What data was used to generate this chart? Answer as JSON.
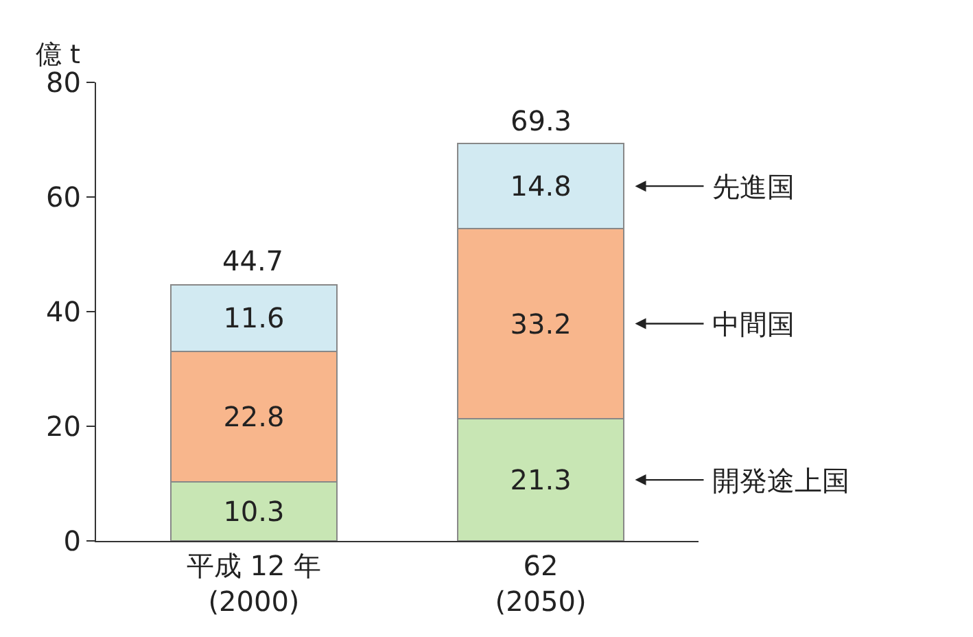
{
  "chart_data": {
    "type": "bar",
    "ylabel": "億 t",
    "categories": [
      "平成 12 年\n(2000)",
      "62\n(2050)"
    ],
    "stacked": true,
    "ylim": [
      0,
      80
    ],
    "yticks": [
      0,
      20,
      40,
      60,
      80
    ],
    "grid": false,
    "legend": false,
    "data_labels": true,
    "series": [
      {
        "name": "開発途上国",
        "color": "#c8e6b4",
        "values": [
          10.3,
          21.3
        ]
      },
      {
        "name": "中間国",
        "color": "#f8b68c",
        "values": [
          22.8,
          33.2
        ]
      },
      {
        "name": "先進国",
        "color": "#d2eaf2",
        "values": [
          11.6,
          14.8
        ]
      }
    ],
    "totals": [
      "44.7",
      "69.3"
    ]
  }
}
